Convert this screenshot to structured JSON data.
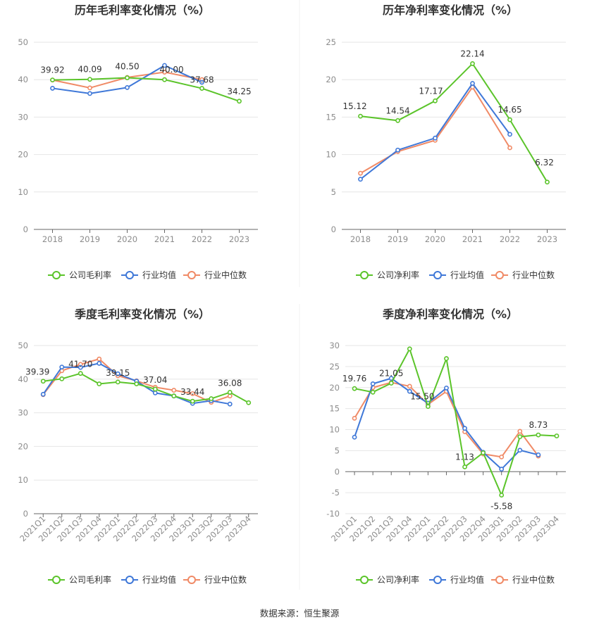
{
  "colors": {
    "company": "#5bc42a",
    "industry_avg": "#3f78d8",
    "industry_median": "#f08a66",
    "grid": "#e6e6e6",
    "axis": "#666666"
  },
  "legend_marker_icon": "circle-line-marker-icon",
  "source_text": "数据来源：恒生聚源",
  "chart_data": [
    {
      "type": "line",
      "title": "历年毛利率变化情况（%）",
      "xlabel": "",
      "ylabel": "",
      "categories": [
        "2018",
        "2019",
        "2020",
        "2021",
        "2022",
        "2023"
      ],
      "ylim": [
        0,
        50
      ],
      "yticks": [
        "0",
        "10",
        "20",
        "30",
        "40",
        "50"
      ],
      "grid": true,
      "legend": "bottom-center",
      "series": [
        {
          "name": "公司毛利率",
          "key": "company",
          "values": [
            39.92,
            40.09,
            40.5,
            40.0,
            37.68,
            34.25
          ],
          "labels": [
            "39.92",
            "40.09",
            "40.50",
            "40.00",
            "37.68",
            "34.25"
          ]
        },
        {
          "name": "行业均值",
          "key": "industry_avg",
          "values": [
            37.7,
            36.3,
            37.9,
            43.8,
            39.3,
            null
          ]
        },
        {
          "name": "行业中位数",
          "key": "industry_median",
          "values": [
            39.9,
            37.8,
            40.6,
            42.0,
            40.0,
            null
          ]
        }
      ]
    },
    {
      "type": "line",
      "title": "历年净利率变化情况（%）",
      "xlabel": "",
      "ylabel": "",
      "categories": [
        "2018",
        "2019",
        "2020",
        "2021",
        "2022",
        "2023"
      ],
      "ylim": [
        0,
        25
      ],
      "yticks": [
        "0",
        "5",
        "10",
        "15",
        "20",
        "25"
      ],
      "grid": true,
      "legend": "bottom-center",
      "series": [
        {
          "name": "公司净利率",
          "key": "company",
          "values": [
            15.12,
            14.54,
            17.17,
            22.14,
            14.65,
            6.32
          ],
          "labels": [
            "15.12",
            "14.54",
            "17.17",
            "22.14",
            "14.65",
            "6.32"
          ]
        },
        {
          "name": "行业均值",
          "key": "industry_avg",
          "values": [
            6.7,
            10.6,
            12.2,
            19.5,
            12.7,
            null
          ]
        },
        {
          "name": "行业中位数",
          "key": "industry_median",
          "values": [
            7.5,
            10.4,
            11.9,
            19.0,
            10.9,
            null
          ]
        }
      ]
    },
    {
      "type": "line",
      "title": "季度毛利率变化情况（%）",
      "xlabel": "",
      "ylabel": "",
      "categories": [
        "2021Q1",
        "2021Q2",
        "2021Q3",
        "2021Q4",
        "2022Q1",
        "2022Q2",
        "2022Q3",
        "2022Q4",
        "2023Q1",
        "2023Q2",
        "2023Q3",
        "2023Q4"
      ],
      "ylim": [
        0,
        50
      ],
      "yticks": [
        "0",
        "10",
        "20",
        "30",
        "40",
        "50"
      ],
      "grid": true,
      "legend": "bottom-center",
      "series": [
        {
          "name": "公司毛利率",
          "key": "company",
          "values": [
            39.39,
            40.1,
            41.7,
            38.6,
            39.15,
            38.6,
            37.04,
            35.0,
            33.44,
            34.2,
            36.08,
            33.0
          ],
          "labels": [
            "39.39",
            "",
            "41.70",
            "",
            "39.15",
            "",
            "37.04",
            "",
            "33.44",
            "",
            "36.08",
            ""
          ]
        },
        {
          "name": "行业均值",
          "key": "industry_avg",
          "values": [
            35.5,
            43.6,
            43.5,
            44.7,
            41.6,
            39.4,
            35.9,
            35.0,
            32.8,
            33.6,
            32.6,
            null
          ]
        },
        {
          "name": "行业中位数",
          "key": "industry_median",
          "values": [
            35.4,
            42.5,
            44.4,
            46.0,
            41.0,
            39.5,
            37.6,
            36.7,
            35.7,
            33.1,
            35.0,
            null
          ]
        }
      ]
    },
    {
      "type": "line",
      "title": "季度净利率变化情况（%）",
      "xlabel": "",
      "ylabel": "",
      "categories": [
        "2021Q1",
        "2021Q2",
        "2021Q3",
        "2021Q4",
        "2022Q1",
        "2022Q2",
        "2022Q3",
        "2022Q4",
        "2023Q1",
        "2023Q2",
        "2023Q3",
        "2023Q4"
      ],
      "ylim": [
        -10,
        30
      ],
      "yticks": [
        "-10",
        "-5",
        "0",
        "5",
        "10",
        "15",
        "20",
        "25",
        "30"
      ],
      "grid": true,
      "legend": "bottom-center",
      "series": [
        {
          "name": "公司净利率",
          "key": "company",
          "values": [
            19.76,
            18.9,
            21.05,
            29.2,
            15.5,
            26.9,
            1.13,
            4.5,
            -5.58,
            8.3,
            8.73,
            8.5
          ],
          "labels": [
            "19.76",
            "",
            "21.05",
            "",
            "15.50",
            "",
            "1.13",
            "",
            "-5.58",
            "",
            "8.73",
            ""
          ]
        },
        {
          "name": "行业均值",
          "key": "industry_avg",
          "values": [
            8.2,
            20.9,
            22.2,
            19.1,
            16.3,
            19.9,
            10.3,
            4.6,
            0.6,
            5.1,
            4.0,
            null
          ]
        },
        {
          "name": "行业中位数",
          "key": "industry_median",
          "values": [
            12.7,
            20.0,
            21.2,
            20.3,
            16.0,
            19.1,
            9.5,
            4.2,
            3.5,
            9.6,
            3.7,
            null
          ]
        }
      ]
    }
  ]
}
